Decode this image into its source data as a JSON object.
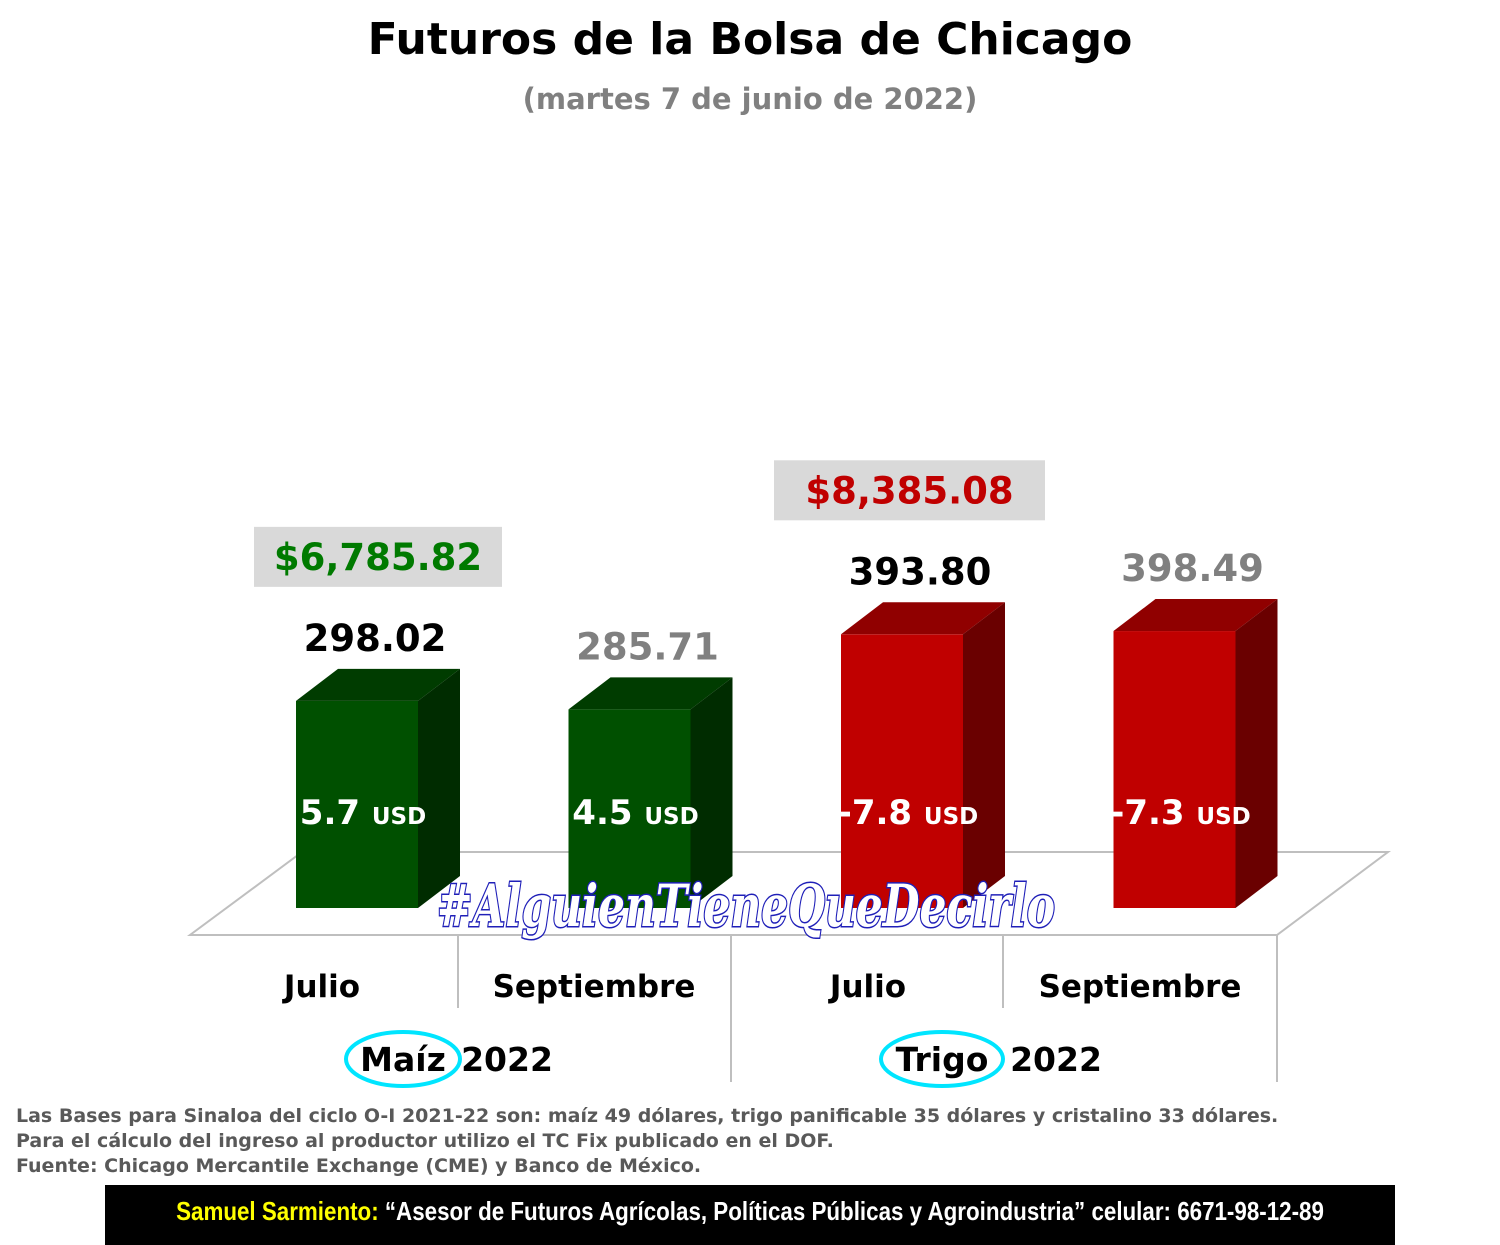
{
  "title": "Futuros de la Bolsa de Chicago",
  "subtitle": "(martes 7 de junio de 2022)",
  "watermark": "#AlguienTieneQueDecirlo",
  "chart_data": {
    "type": "bar",
    "groups": [
      {
        "crop": "Maíz",
        "year": "2022",
        "color": "#005000",
        "peso_price": "$6,785.82",
        "peso_color": "#007a00"
      },
      {
        "crop": "Trigo",
        "year": "2022",
        "color": "#c00000",
        "peso_price": "$8,385.08",
        "peso_color": "#c00000"
      }
    ],
    "categories": [
      "Julio",
      "Septiembre",
      "Julio",
      "Septiembre"
    ],
    "values": [
      298.02,
      285.71,
      393.8,
      398.49
    ],
    "value_labels": [
      "298.02",
      "285.71",
      "393.80",
      "398.49"
    ],
    "label_colors": [
      "#000000",
      "#808080",
      "#000000",
      "#808080"
    ],
    "bases": [
      "5.7",
      "4.5",
      "-7.8",
      "-7.3"
    ],
    "base_unit": "USD",
    "colors": [
      "#005000",
      "#005000",
      "#c00000",
      "#c00000"
    ]
  },
  "notes": [
    "Las Bases para Sinaloa del ciclo O-I 2021-22 son: maíz 49 dólares, trigo panificable 35 dólares y cristalino 33 dólares.",
    "Para el cálculo del ingreso al productor utilizo el TC Fix publicado en el DOF.",
    "Fuente: Chicago Mercantile Exchange (CME) y Banco de México."
  ],
  "footer": {
    "name": "Samuel Sarmiento:",
    "text": " “Asesor de Futuros Agrícolas, Políticas Públicas y Agroindustria”  celular: 6671-98-12-89"
  }
}
